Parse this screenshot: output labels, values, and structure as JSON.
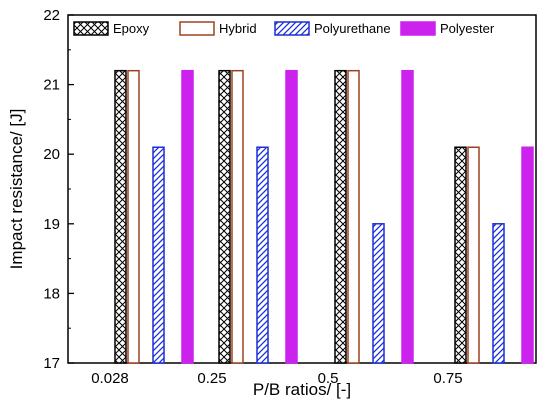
{
  "chart_data": {
    "type": "bar",
    "title": "",
    "xlabel": "P/B ratios/ [-]",
    "ylabel": "Impact resistance/ [J]",
    "categories": [
      "0.028",
      "0.25",
      "0.5",
      "0.75"
    ],
    "ylim": [
      17,
      22
    ],
    "yticks": [
      "17",
      "18",
      "19",
      "20",
      "21",
      "22"
    ],
    "grid": false,
    "legend_position": "top",
    "series": [
      {
        "name": "Epoxy",
        "values": [
          21.2,
          21.2,
          21.2,
          20.1
        ],
        "color": "#000000",
        "fill": "crosshatch"
      },
      {
        "name": "Hybrid",
        "values": [
          21.2,
          21.2,
          21.2,
          20.1
        ],
        "color": "#a0401e",
        "fill": "none"
      },
      {
        "name": "Polyurethane",
        "values": [
          20.1,
          20.1,
          19.0,
          19.0
        ],
        "color": "#1a2fd6",
        "fill": "diagonal-hatch"
      },
      {
        "name": "Polyester",
        "values": [
          21.2,
          21.2,
          21.2,
          20.1
        ],
        "color": "#cc22ee",
        "fill": "solid"
      }
    ]
  }
}
